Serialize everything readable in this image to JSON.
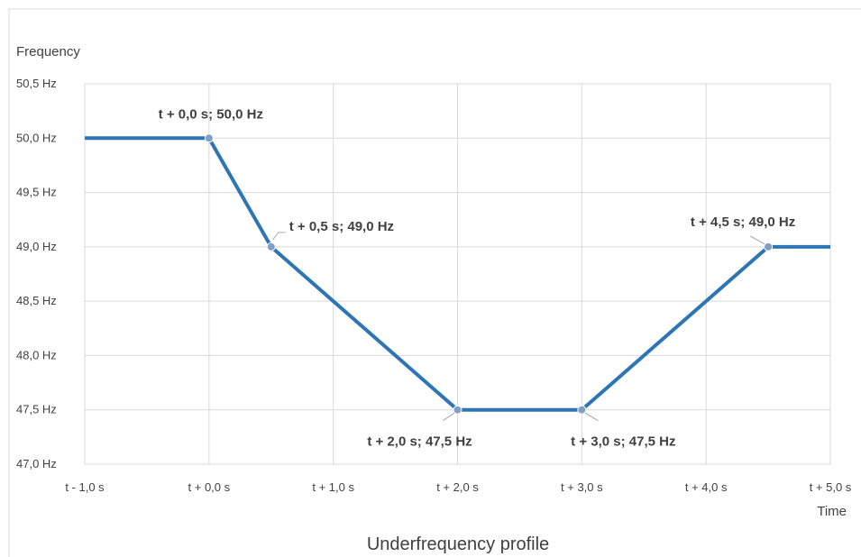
{
  "chart_data": {
    "type": "line",
    "title": "Underfrequency profile",
    "xlabel": "Time",
    "ylabel": "Frequency",
    "x_tick_labels": [
      "t - 1,0 s",
      "t + 0,0 s",
      "t + 1,0 s",
      "t + 2,0 s",
      "t + 3,0 s",
      "t + 4,0 s",
      "t + 5,0 s"
    ],
    "x_ticks": [
      -1,
      0,
      1,
      2,
      3,
      4,
      5
    ],
    "y_tick_labels": [
      "47,0 Hz",
      "47,5 Hz",
      "48,0 Hz",
      "48,5 Hz",
      "49,0 Hz",
      "49,5 Hz",
      "50,0 Hz",
      "50,5 Hz"
    ],
    "y_ticks": [
      47.0,
      47.5,
      48.0,
      48.5,
      49.0,
      49.5,
      50.0,
      50.5
    ],
    "xlim": [
      -1,
      5
    ],
    "ylim": [
      47.0,
      50.5
    ],
    "grid": true,
    "line_color": "#2e75b6",
    "marker_color": "#7f9fc6",
    "series": [
      {
        "x": [
          -1,
          0,
          0.5,
          2,
          3,
          4.5,
          5
        ],
        "y": [
          50.0,
          50.0,
          49.0,
          47.5,
          47.5,
          49.0,
          49.0
        ]
      }
    ],
    "annotations": [
      {
        "x": 0,
        "y": 50.0,
        "text": "t + 0,0 s; 50,0 Hz"
      },
      {
        "x": 0.5,
        "y": 49.0,
        "text": "t + 0,5 s; 49,0 Hz"
      },
      {
        "x": 2,
        "y": 47.5,
        "text": "t + 2,0 s; 47,5 Hz"
      },
      {
        "x": 3,
        "y": 47.5,
        "text": "t + 3,0 s; 47,5 Hz"
      },
      {
        "x": 4.5,
        "y": 49.0,
        "text": "t + 4,5 s; 49,0 Hz"
      }
    ]
  }
}
